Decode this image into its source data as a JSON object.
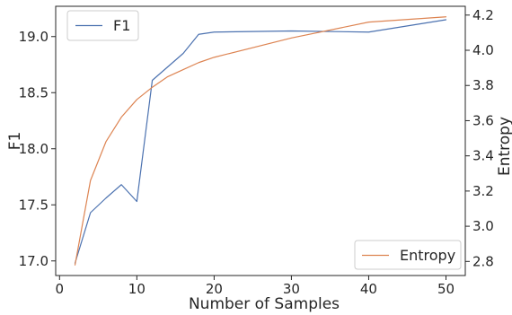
{
  "chart_data": {
    "type": "line",
    "xlabel": "Number of Samples",
    "ylabel_left": "F1",
    "ylabel_right": "Entropy",
    "xlim": [
      -0.5,
      52.5
    ],
    "ylim_left": [
      16.87,
      19.27
    ],
    "ylim_right": [
      2.72,
      4.25
    ],
    "x_ticks": [
      0,
      10,
      20,
      30,
      40,
      50
    ],
    "y_ticks_left": [
      17.0,
      17.5,
      18.0,
      18.5,
      19.0
    ],
    "y_ticks_right": [
      2.8,
      3.0,
      3.2,
      3.4,
      3.6,
      3.8,
      4.0,
      4.2
    ],
    "grid": false,
    "series": [
      {
        "name": "F1",
        "axis": "left",
        "color": "#4c72b0",
        "legend": "top-left",
        "x": [
          2,
          4,
          6,
          8,
          10,
          12,
          14,
          16,
          18,
          20,
          30,
          40,
          50
        ],
        "y": [
          16.98,
          17.43,
          17.56,
          17.68,
          17.53,
          18.61,
          18.73,
          18.85,
          19.02,
          19.04,
          19.05,
          19.04,
          19.15
        ]
      },
      {
        "name": "Entropy",
        "axis": "right",
        "color": "#dd8452",
        "legend": "bottom-right",
        "x": [
          2,
          4,
          6,
          8,
          10,
          12,
          14,
          16,
          18,
          20,
          30,
          40,
          50
        ],
        "y": [
          2.78,
          3.26,
          3.48,
          3.62,
          3.72,
          3.79,
          3.85,
          3.89,
          3.93,
          3.96,
          4.07,
          4.16,
          4.19
        ]
      }
    ]
  }
}
